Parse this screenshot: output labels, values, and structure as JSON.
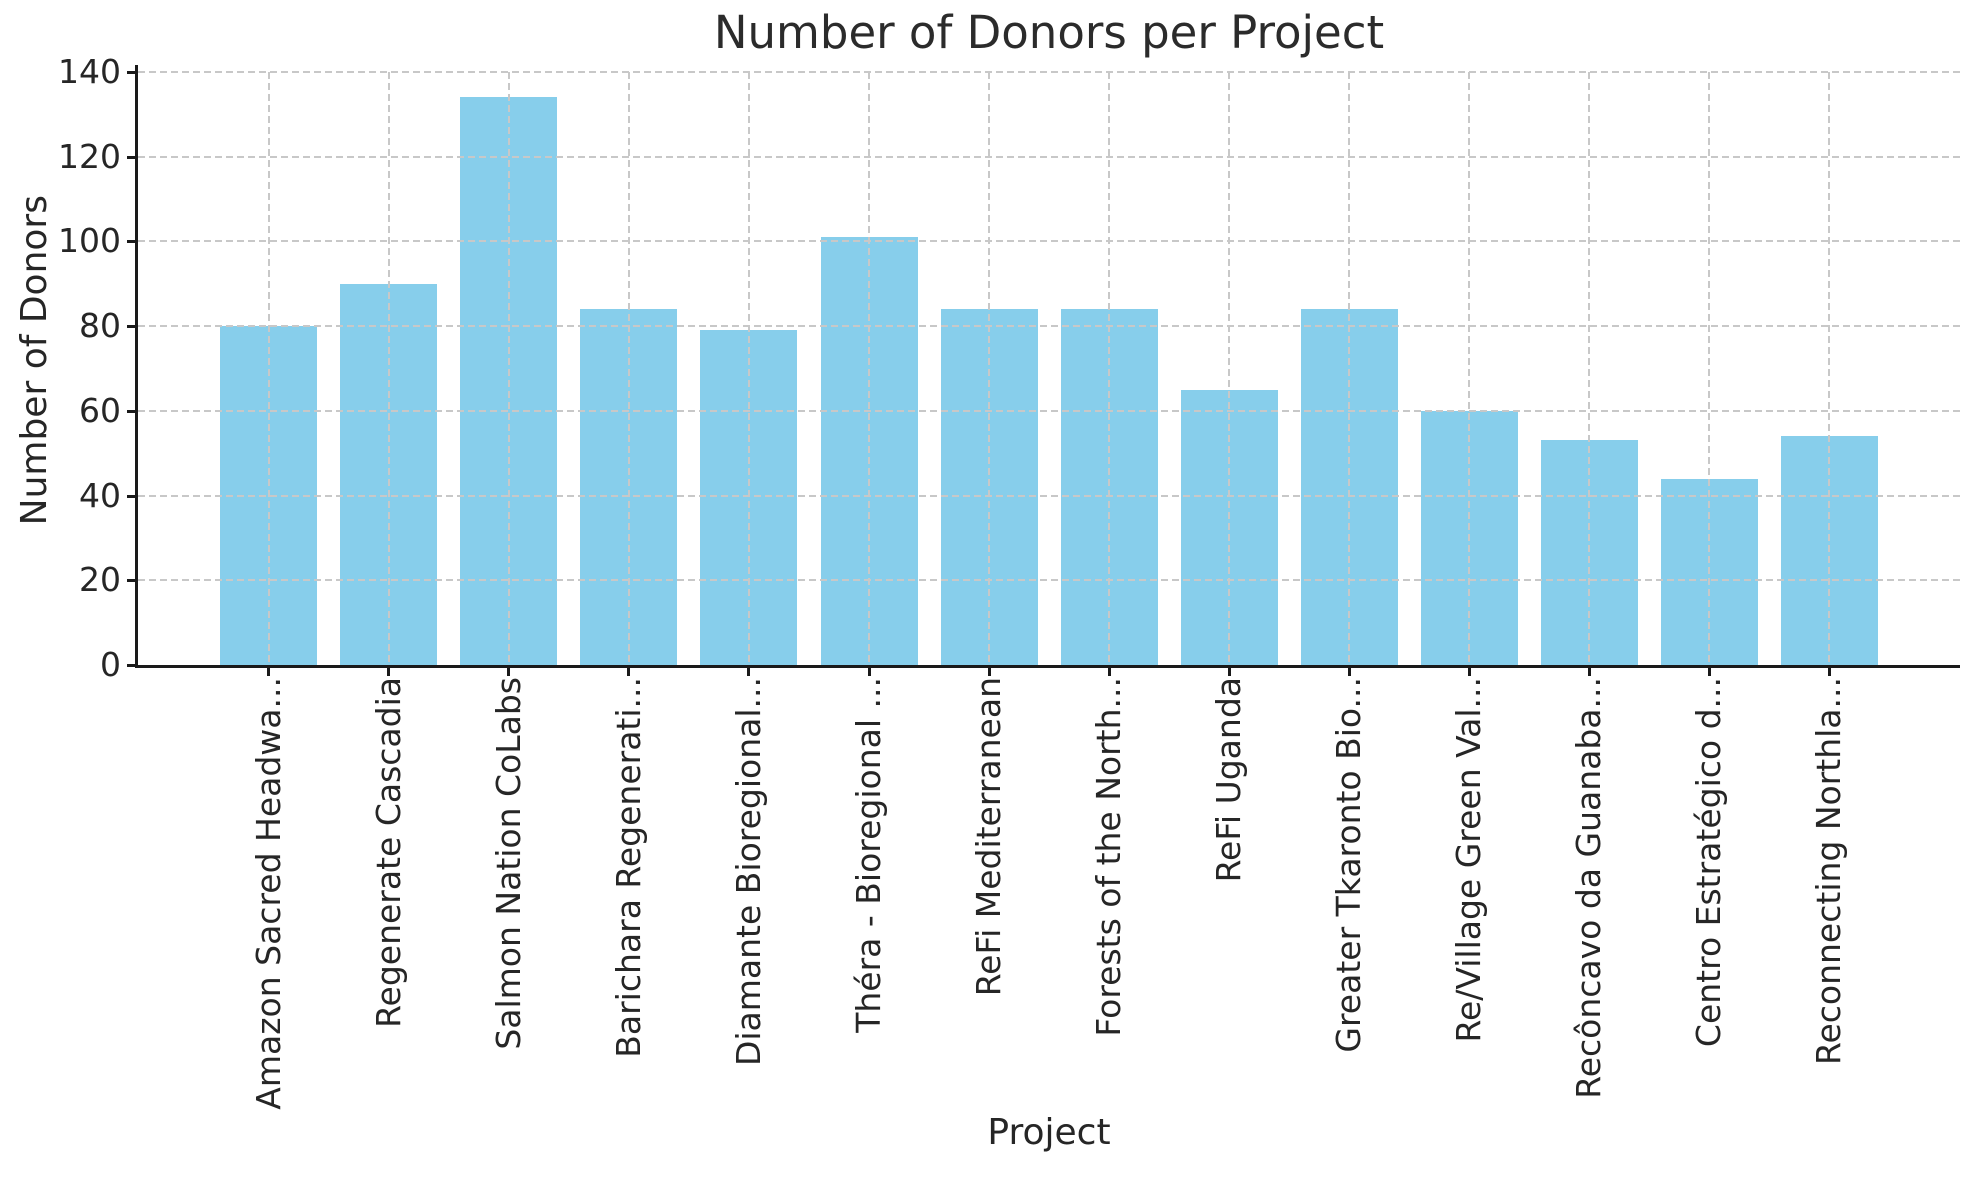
{
  "chart_data": {
    "type": "bar",
    "title": "Number of Donors per Project",
    "xlabel": "Project",
    "ylabel": "Number of Donors",
    "categories": [
      "Amazon Sacred Headwa...",
      "Regenerate Cascadia",
      "Salmon Nation CoLabs",
      "Barichara Regenerati...",
      "Diamante Bioregional...",
      "Théra - Bioregional ...",
      "ReFi Mediterranean",
      "Forests of the North...",
      "ReFi Uganda",
      "Greater Tkaronto Bio...",
      "Re/Village Green Val...",
      "Recôncavo da Guanaba...",
      "Centro Estratégico d...",
      "Reconnecting Northla..."
    ],
    "values": [
      80,
      90,
      134,
      84,
      79,
      101,
      84,
      84,
      65,
      84,
      60,
      53,
      44,
      54
    ],
    "ylim": [
      0,
      140
    ],
    "yticks": [
      0,
      20,
      40,
      60,
      80,
      100,
      120,
      140
    ],
    "grid": true,
    "grid_style": "dashed",
    "legend": false,
    "bar_color": "#87CEEB",
    "grid_color": "#c8c8c8",
    "axis_color": "#1a1a1a",
    "text_color": "#262626",
    "background": "#ffffff"
  }
}
